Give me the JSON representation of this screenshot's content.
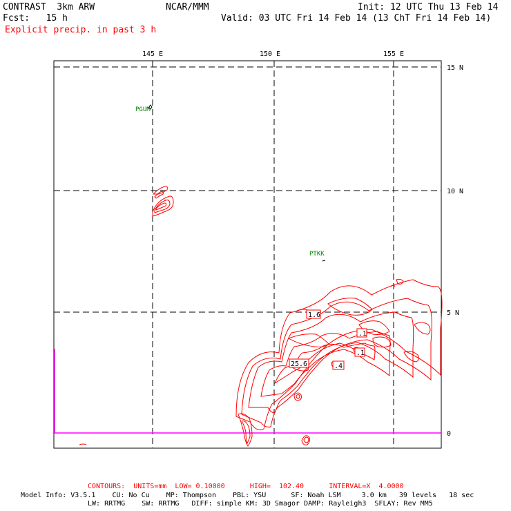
{
  "header": {
    "model": "CONTRAST  3km ARW",
    "center": "NCAR/MMM",
    "init": "Init: 12 UTC Thu 13 Feb 14",
    "fcst": "Fcst:   15 h",
    "valid": "Valid: 03 UTC Fri 14 Feb 14 (13 ChT Fri 14 Feb 14)",
    "field": "Explicit precip. in past 3 h"
  },
  "map": {
    "lon_labels": [
      "145 E",
      "150 E",
      "155 E"
    ],
    "lat_labels": [
      "15 N",
      "10 N",
      "5 N",
      "0"
    ],
    "stations": [
      "PGUM",
      "PTKK"
    ],
    "contour_labels": [
      "1.6",
      ".1",
      ".1",
      "25.6",
      ".4"
    ],
    "colors": {
      "contour": "#ff0000",
      "station": "#008000",
      "boundary": "#ff00ff",
      "grid": "#000000"
    }
  },
  "footer": {
    "contours": "CONTOURS:  UNITS=mm  LOW= 0.10000      HIGH=  102.40      INTERVAL=X  4.0000",
    "model_info_1": "Model Info: V3.5.1    CU: No Cu    MP: Thompson    PBL: YSU      SF: Noah LSM     3.0 km   39 levels   18 sec",
    "model_info_2": "LW: RRTMG    SW: RRTMG   DIFF: simple KM: 3D Smagor DAMP: Rayleigh3  SFLAY: Rev MM5"
  }
}
